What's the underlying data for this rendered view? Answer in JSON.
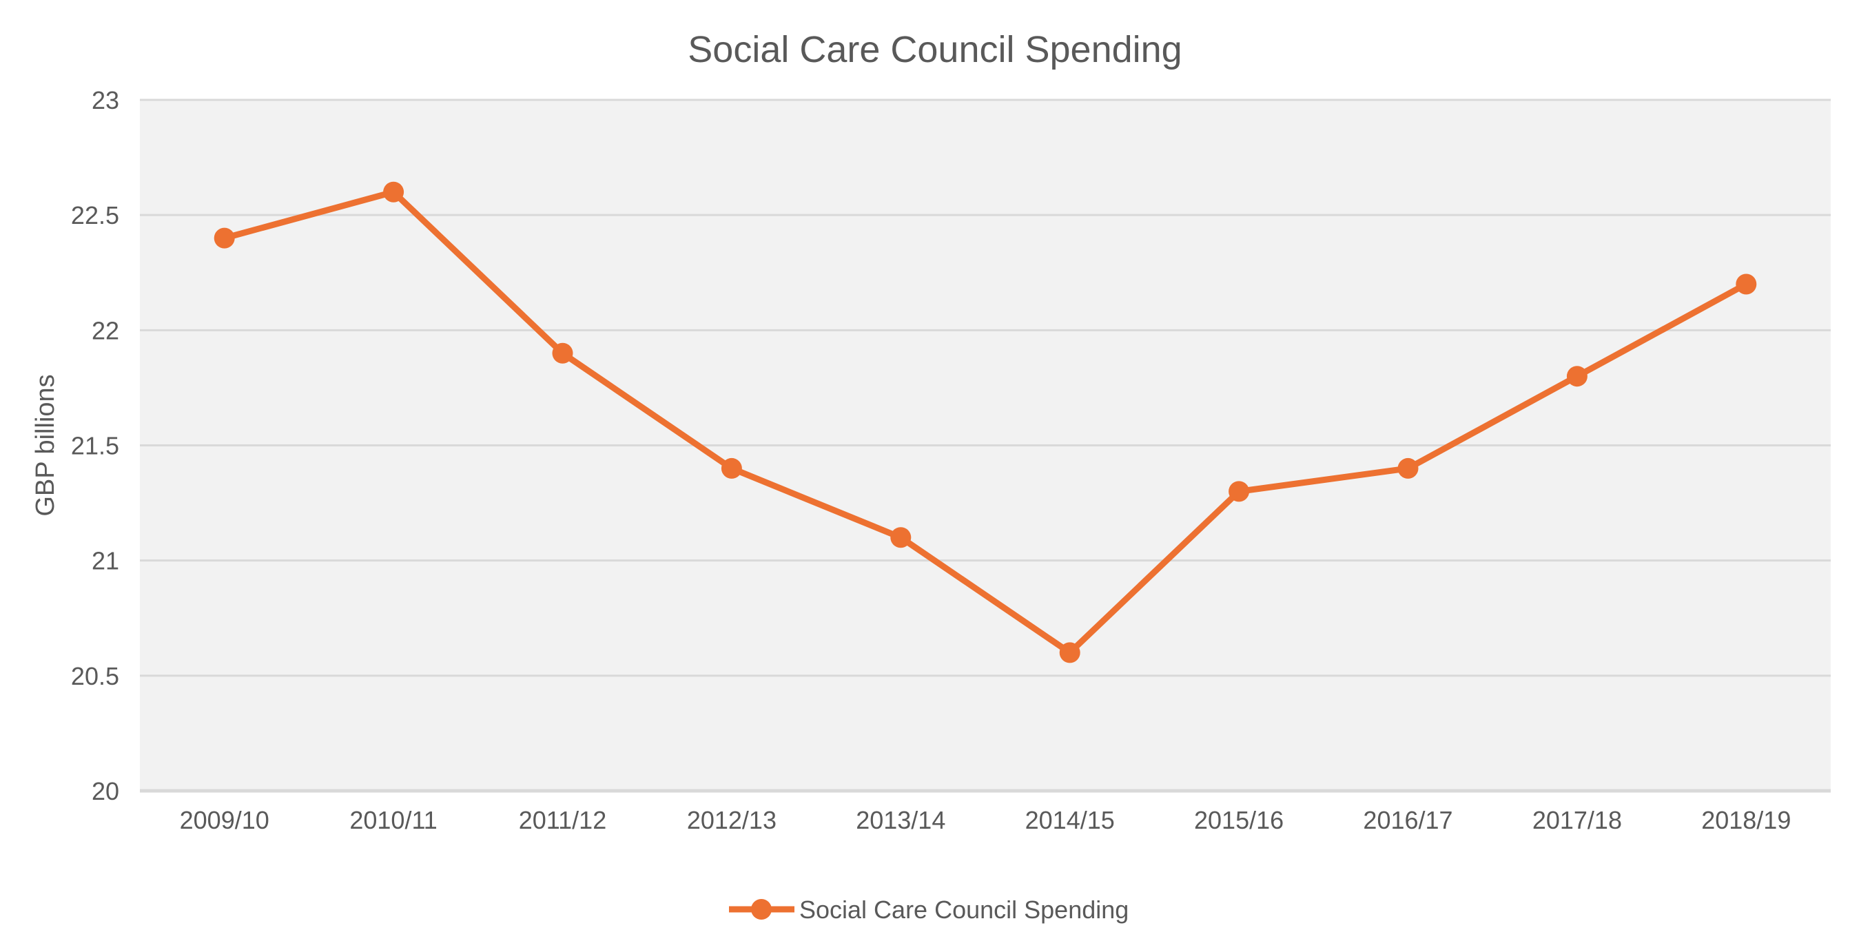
{
  "chart_data": {
    "type": "line",
    "title": "Social Care Council Spending",
    "xlabel": "",
    "ylabel": "GBP billions",
    "categories": [
      "2009/10",
      "2010/11",
      "2011/12",
      "2012/13",
      "2013/14",
      "2014/15",
      "2015/16",
      "2016/17",
      "2017/18",
      "2018/19"
    ],
    "series": [
      {
        "name": "Social Care Council Spending",
        "color": "#ED7131",
        "values": [
          22.4,
          22.6,
          21.9,
          21.4,
          21.1,
          20.6,
          21.3,
          21.4,
          21.8,
          22.2
        ]
      }
    ],
    "ylim": [
      20,
      23
    ],
    "yticks": [
      "20",
      "20.5",
      "21",
      "21.5",
      "22",
      "22.5",
      "23"
    ],
    "grid": true,
    "legend": "bottom-center",
    "plot_background": "#F2F2F2",
    "grid_color": "#D9D9D9"
  }
}
